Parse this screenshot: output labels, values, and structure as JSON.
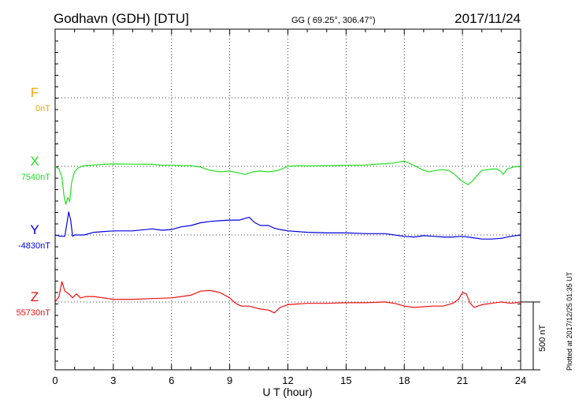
{
  "header": {
    "station": "Godhavn (GDH)  [DTU]",
    "coords": "GG ( 69.25°, 306.47°)",
    "date": "2017/11/24"
  },
  "plotted_note": "Plotted at 2017/12/25 01:35 UT",
  "scale_bar": {
    "label": "500 nT",
    "value_nT": 500
  },
  "chart_data": {
    "type": "line",
    "title": "Godhavn (GDH)  [DTU]",
    "xlabel": "U T (hour)",
    "ylabel": "",
    "xlim": [
      0,
      24
    ],
    "xticks": [
      0,
      3,
      6,
      9,
      12,
      15,
      18,
      21,
      24
    ],
    "xtick_labels": [
      "0",
      "3",
      "6",
      "9",
      "12",
      "15",
      "18",
      "21",
      "24"
    ],
    "grid": true,
    "units": "nT",
    "series": [
      {
        "name": "F",
        "baseline_label": "0nT",
        "color": "#f5a400",
        "x": [],
        "values": []
      },
      {
        "name": "X",
        "baseline_label": "7540nT",
        "color": "#22e022",
        "x": [
          0,
          0.2,
          0.35,
          0.45,
          0.55,
          0.65,
          0.75,
          0.85,
          1.0,
          1.2,
          1.5,
          2.0,
          2.5,
          3.0,
          4.0,
          5.0,
          5.5,
          6.0,
          6.5,
          7.0,
          7.5,
          8.0,
          8.5,
          9.0,
          9.5,
          9.8,
          10.2,
          10.5,
          11.0,
          11.5,
          12.0,
          12.5,
          13.0,
          14.0,
          15.0,
          16.0,
          16.5,
          17.0,
          17.5,
          18.0,
          18.3,
          18.6,
          19.0,
          19.3,
          19.6,
          20.0,
          20.3,
          20.6,
          20.9,
          21.1,
          21.3,
          21.5,
          21.8,
          22.0,
          22.5,
          22.8,
          23.0,
          23.1,
          23.3,
          23.6,
          24.0
        ],
        "values": [
          7540,
          7520,
          7460,
          7330,
          7260,
          7310,
          7280,
          7420,
          7500,
          7530,
          7545,
          7550,
          7555,
          7558,
          7556,
          7555,
          7548,
          7550,
          7545,
          7545,
          7535,
          7510,
          7500,
          7505,
          7490,
          7480,
          7500,
          7505,
          7500,
          7510,
          7540,
          7545,
          7543,
          7545,
          7548,
          7550,
          7555,
          7560,
          7565,
          7580,
          7560,
          7540,
          7510,
          7500,
          7510,
          7515,
          7510,
          7480,
          7440,
          7420,
          7405,
          7430,
          7480,
          7510,
          7520,
          7520,
          7500,
          7480,
          7520,
          7535,
          7540
        ]
      },
      {
        "name": "Y",
        "baseline_label": "-4830nT",
        "color": "#0000dd",
        "x": [
          0,
          0.3,
          0.5,
          0.6,
          0.7,
          0.8,
          0.9,
          1.0,
          1.5,
          2.0,
          3.0,
          4.0,
          5.0,
          5.5,
          6.0,
          6.5,
          7.0,
          7.5,
          8.0,
          8.5,
          9.0,
          9.5,
          10.0,
          10.3,
          10.6,
          11.0,
          11.3,
          11.6,
          12.0,
          13.0,
          14.0,
          15.0,
          16.0,
          17.0,
          18.0,
          18.5,
          19.0,
          19.5,
          20.0,
          20.5,
          21.0,
          21.5,
          22.0,
          22.5,
          23.0,
          23.5,
          24.0
        ],
        "values": [
          -4830,
          -4840,
          -4840,
          -4750,
          -4660,
          -4720,
          -4840,
          -4830,
          -4830,
          -4810,
          -4800,
          -4800,
          -4785,
          -4795,
          -4790,
          -4770,
          -4760,
          -4740,
          -4730,
          -4725,
          -4720,
          -4720,
          -4700,
          -4740,
          -4760,
          -4760,
          -4780,
          -4790,
          -4800,
          -4810,
          -4815,
          -4815,
          -4820,
          -4820,
          -4840,
          -4845,
          -4835,
          -4840,
          -4845,
          -4845,
          -4840,
          -4850,
          -4860,
          -4860,
          -4855,
          -4840,
          -4830
        ]
      },
      {
        "name": "Z",
        "baseline_label": "55730nT",
        "color": "#ee1111",
        "x": [
          0,
          0.2,
          0.35,
          0.5,
          0.7,
          0.9,
          1.1,
          1.3,
          1.6,
          2.0,
          3.0,
          4.0,
          5.0,
          6.0,
          6.5,
          7.0,
          7.5,
          8.0,
          8.5,
          9.0,
          9.3,
          9.6,
          10.0,
          10.5,
          11.0,
          11.3,
          11.6,
          12.0,
          13.0,
          14.0,
          15.0,
          16.0,
          17.0,
          17.5,
          18.0,
          18.5,
          19.0,
          19.5,
          20.0,
          20.5,
          20.8,
          21.0,
          21.2,
          21.4,
          21.6,
          21.8,
          22.0,
          22.5,
          23.0,
          23.5,
          24.0
        ],
        "values": [
          55730,
          55770,
          55880,
          55810,
          55790,
          55760,
          55790,
          55760,
          55770,
          55770,
          55750,
          55750,
          55755,
          55760,
          55770,
          55780,
          55810,
          55815,
          55800,
          55760,
          55720,
          55700,
          55700,
          55680,
          55670,
          55650,
          55690,
          55710,
          55720,
          55720,
          55725,
          55725,
          55730,
          55720,
          55700,
          55690,
          55695,
          55700,
          55700,
          55720,
          55750,
          55800,
          55790,
          55720,
          55690,
          55700,
          55710,
          55720,
          55730,
          55720,
          55730
        ]
      }
    ]
  }
}
